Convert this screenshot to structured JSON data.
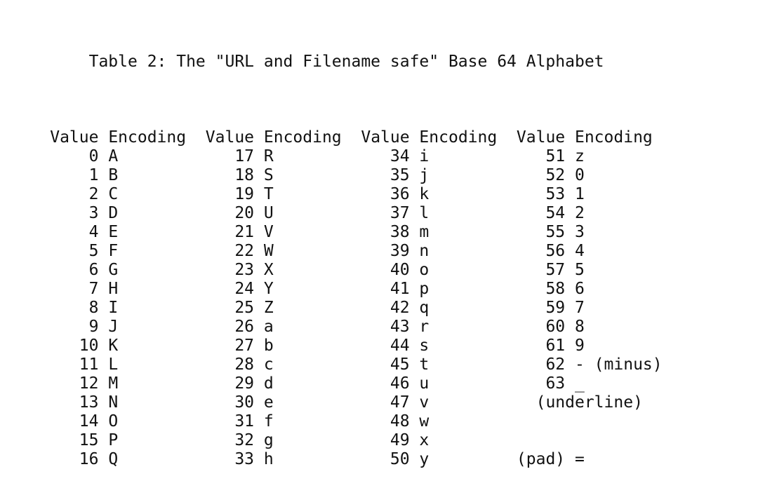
{
  "title": "Table 2: The \"URL and Filename safe\" Base 64 Alphabet",
  "colors": {
    "text": "#111111",
    "background": "#ffffff"
  },
  "table": {
    "columns": [
      {
        "header": {
          "value": "Value",
          "encoding": "Encoding"
        },
        "cells": [
          {
            "v": "0",
            "e": "A"
          },
          {
            "v": "1",
            "e": "B"
          },
          {
            "v": "2",
            "e": "C"
          },
          {
            "v": "3",
            "e": "D"
          },
          {
            "v": "4",
            "e": "E"
          },
          {
            "v": "5",
            "e": "F"
          },
          {
            "v": "6",
            "e": "G"
          },
          {
            "v": "7",
            "e": "H"
          },
          {
            "v": "8",
            "e": "I"
          },
          {
            "v": "9",
            "e": "J"
          },
          {
            "v": "10",
            "e": "K"
          },
          {
            "v": "11",
            "e": "L"
          },
          {
            "v": "12",
            "e": "M"
          },
          {
            "v": "13",
            "e": "N"
          },
          {
            "v": "14",
            "e": "O"
          },
          {
            "v": "15",
            "e": "P"
          },
          {
            "v": "16",
            "e": "Q"
          }
        ]
      },
      {
        "header": {
          "value": "Value",
          "encoding": "Encoding"
        },
        "cells": [
          {
            "v": "17",
            "e": "R"
          },
          {
            "v": "18",
            "e": "S"
          },
          {
            "v": "19",
            "e": "T"
          },
          {
            "v": "20",
            "e": "U"
          },
          {
            "v": "21",
            "e": "V"
          },
          {
            "v": "22",
            "e": "W"
          },
          {
            "v": "23",
            "e": "X"
          },
          {
            "v": "24",
            "e": "Y"
          },
          {
            "v": "25",
            "e": "Z"
          },
          {
            "v": "26",
            "e": "a"
          },
          {
            "v": "27",
            "e": "b"
          },
          {
            "v": "28",
            "e": "c"
          },
          {
            "v": "29",
            "e": "d"
          },
          {
            "v": "30",
            "e": "e"
          },
          {
            "v": "31",
            "e": "f"
          },
          {
            "v": "32",
            "e": "g"
          },
          {
            "v": "33",
            "e": "h"
          }
        ]
      },
      {
        "header": {
          "value": "Value",
          "encoding": "Encoding"
        },
        "cells": [
          {
            "v": "34",
            "e": "i"
          },
          {
            "v": "35",
            "e": "j"
          },
          {
            "v": "36",
            "e": "k"
          },
          {
            "v": "37",
            "e": "l"
          },
          {
            "v": "38",
            "e": "m"
          },
          {
            "v": "39",
            "e": "n"
          },
          {
            "v": "40",
            "e": "o"
          },
          {
            "v": "41",
            "e": "p"
          },
          {
            "v": "42",
            "e": "q"
          },
          {
            "v": "43",
            "e": "r"
          },
          {
            "v": "44",
            "e": "s"
          },
          {
            "v": "45",
            "e": "t"
          },
          {
            "v": "46",
            "e": "u"
          },
          {
            "v": "47",
            "e": "v"
          },
          {
            "v": "48",
            "e": "w"
          },
          {
            "v": "49",
            "e": "x"
          },
          {
            "v": "50",
            "e": "y"
          }
        ]
      },
      {
        "header": {
          "value": "Value",
          "encoding": "Encoding"
        },
        "cells": [
          {
            "v": "51",
            "e": "z"
          },
          {
            "v": "52",
            "e": "0"
          },
          {
            "v": "53",
            "e": "1"
          },
          {
            "v": "54",
            "e": "2"
          },
          {
            "v": "55",
            "e": "3"
          },
          {
            "v": "56",
            "e": "4"
          },
          {
            "v": "57",
            "e": "5"
          },
          {
            "v": "58",
            "e": "6"
          },
          {
            "v": "59",
            "e": "7"
          },
          {
            "v": "60",
            "e": "8"
          },
          {
            "v": "61",
            "e": "9"
          },
          {
            "v": "62",
            "e": "-",
            "note": "(minus)"
          },
          {
            "v": "63",
            "e": "_"
          },
          {
            "text": "(underline)",
            "col": 55
          },
          null,
          null,
          {
            "text": "(pad) =",
            "col": 53
          }
        ]
      }
    ]
  }
}
